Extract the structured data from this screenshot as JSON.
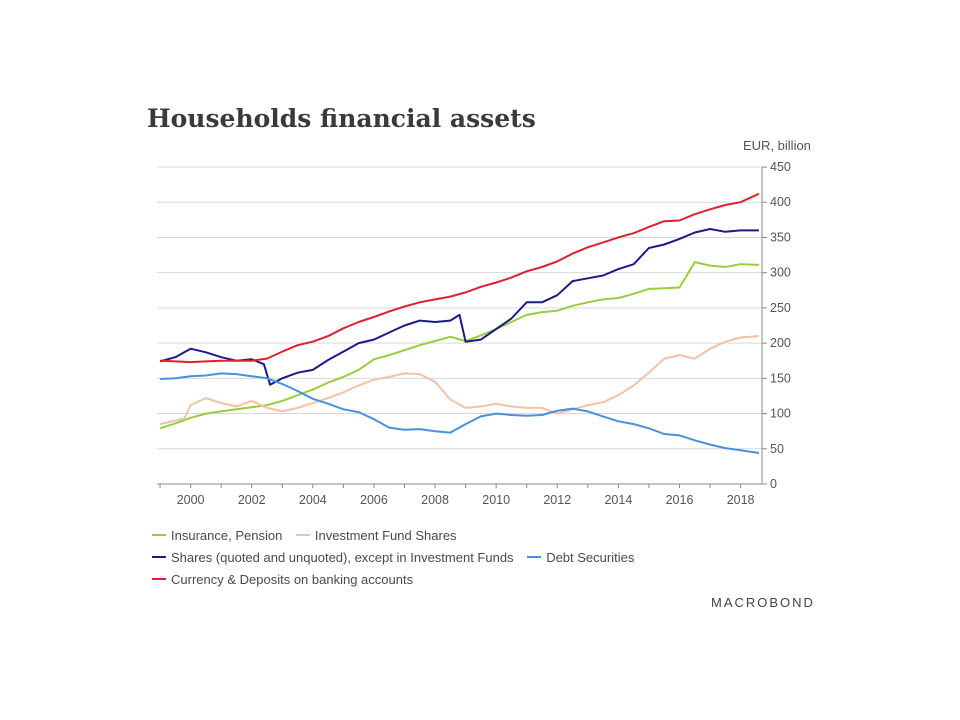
{
  "chart_data": {
    "type": "line",
    "title": "Households financial assets",
    "unit_label": "EUR, billion",
    "xlabel": "",
    "ylabel": "",
    "ylim": [
      0,
      450
    ],
    "yticks": [
      0,
      50,
      100,
      150,
      200,
      250,
      300,
      350,
      400,
      450
    ],
    "xlim": [
      1998.9,
      2018.7
    ],
    "xticks": [
      2000,
      2002,
      2004,
      2006,
      2008,
      2010,
      2012,
      2014,
      2016,
      2018
    ],
    "grid": true,
    "legend_position": "bottom",
    "source": "MACROBOND",
    "series": [
      {
        "name": "Insurance, Pension",
        "color": "#9acd3c",
        "x": [
          1999.0,
          1999.5,
          2000.0,
          2000.5,
          2001.0,
          2001.5,
          2002.0,
          2002.5,
          2003.0,
          2003.5,
          2004.0,
          2004.5,
          2005.0,
          2005.5,
          2006.0,
          2006.5,
          2007.0,
          2007.5,
          2008.0,
          2008.5,
          2009.0,
          2009.5,
          2010.0,
          2010.5,
          2011.0,
          2011.5,
          2012.0,
          2012.5,
          2013.0,
          2013.5,
          2014.0,
          2014.5,
          2015.0,
          2015.5,
          2016.0,
          2016.5,
          2017.0,
          2017.5,
          2018.0,
          2018.6
        ],
        "values": [
          79,
          86,
          94,
          100,
          103,
          106,
          109,
          112,
          118,
          126,
          134,
          144,
          152,
          162,
          177,
          183,
          190,
          197,
          203,
          209,
          203,
          211,
          220,
          230,
          240,
          244,
          246,
          253,
          258,
          262,
          264,
          270,
          277,
          278,
          279,
          315,
          310,
          308,
          312,
          311
        ]
      },
      {
        "name": "Investment Fund Shares",
        "color": "#f5c1a4",
        "x": [
          1999.0,
          1999.5,
          1999.8,
          2000.0,
          2000.5,
          2001.0,
          2001.5,
          2002.0,
          2002.5,
          2003.0,
          2003.5,
          2004.0,
          2004.5,
          2005.0,
          2005.5,
          2006.0,
          2006.5,
          2007.0,
          2007.5,
          2008.0,
          2008.5,
          2009.0,
          2009.5,
          2010.0,
          2010.5,
          2011.0,
          2011.5,
          2012.0,
          2012.5,
          2013.0,
          2013.5,
          2014.0,
          2014.5,
          2015.0,
          2015.5,
          2016.0,
          2016.5,
          2017.0,
          2017.5,
          2018.0,
          2018.6
        ],
        "values": [
          85,
          90,
          93,
          112,
          122,
          115,
          110,
          118,
          108,
          103,
          108,
          115,
          122,
          130,
          140,
          148,
          152,
          157,
          156,
          145,
          120,
          108,
          110,
          114,
          110,
          108,
          108,
          100,
          106,
          112,
          116,
          126,
          140,
          158,
          178,
          183,
          178,
          192,
          202,
          208,
          210
        ]
      },
      {
        "name": "Shares (quoted and unquoted), except in Investment Funds",
        "color": "#1a1a8c",
        "x": [
          1999.0,
          1999.5,
          2000.0,
          2000.5,
          2001.0,
          2001.5,
          2002.0,
          2002.4,
          2002.6,
          2003.0,
          2003.5,
          2004.0,
          2004.5,
          2005.0,
          2005.5,
          2006.0,
          2006.5,
          2007.0,
          2007.5,
          2008.0,
          2008.5,
          2008.8,
          2009.0,
          2009.5,
          2010.0,
          2010.5,
          2011.0,
          2011.5,
          2012.0,
          2012.5,
          2013.0,
          2013.5,
          2014.0,
          2014.5,
          2015.0,
          2015.5,
          2016.0,
          2016.5,
          2017.0,
          2017.5,
          2018.0,
          2018.6
        ],
        "values": [
          174,
          180,
          192,
          187,
          180,
          175,
          177,
          170,
          141,
          150,
          158,
          162,
          176,
          188,
          200,
          205,
          215,
          225,
          232,
          230,
          232,
          240,
          202,
          205,
          220,
          235,
          258,
          258,
          268,
          288,
          292,
          296,
          305,
          312,
          335,
          340,
          348,
          357,
          362,
          358,
          360,
          360
        ]
      },
      {
        "name": "Debt Securities",
        "color": "#4a8fe0",
        "x": [
          1999.0,
          1999.5,
          2000.0,
          2000.5,
          2001.0,
          2001.5,
          2002.0,
          2002.5,
          2003.0,
          2003.5,
          2004.0,
          2004.5,
          2005.0,
          2005.5,
          2006.0,
          2006.5,
          2007.0,
          2007.5,
          2008.0,
          2008.5,
          2009.0,
          2009.5,
          2010.0,
          2010.5,
          2011.0,
          2011.5,
          2012.0,
          2012.5,
          2013.0,
          2013.5,
          2014.0,
          2014.5,
          2015.0,
          2015.5,
          2016.0,
          2016.5,
          2017.0,
          2017.5,
          2018.0,
          2018.6
        ],
        "values": [
          149,
          150,
          153,
          154,
          157,
          156,
          153,
          150,
          142,
          132,
          121,
          114,
          106,
          102,
          92,
          80,
          77,
          78,
          75,
          73,
          85,
          96,
          100,
          98,
          97,
          98,
          104,
          107,
          103,
          96,
          89,
          85,
          79,
          71,
          69,
          62,
          56,
          51,
          48,
          44
        ]
      },
      {
        "name": "Currency & Deposits on banking accounts",
        "color": "#e0202c",
        "x": [
          1999.0,
          1999.5,
          2000.0,
          2000.5,
          2001.0,
          2001.5,
          2002.0,
          2002.5,
          2003.0,
          2003.5,
          2004.0,
          2004.5,
          2005.0,
          2005.5,
          2006.0,
          2006.5,
          2007.0,
          2007.5,
          2008.0,
          2008.5,
          2009.0,
          2009.5,
          2010.0,
          2010.5,
          2011.0,
          2011.5,
          2012.0,
          2012.5,
          2013.0,
          2013.5,
          2014.0,
          2014.5,
          2015.0,
          2015.5,
          2016.0,
          2016.5,
          2017.0,
          2017.5,
          2018.0,
          2018.6
        ],
        "values": [
          175,
          174,
          173,
          174,
          175,
          175,
          175,
          178,
          188,
          197,
          202,
          210,
          221,
          230,
          237,
          245,
          252,
          258,
          262,
          266,
          272,
          280,
          286,
          293,
          302,
          308,
          316,
          327,
          336,
          343,
          350,
          356,
          365,
          373,
          374,
          383,
          390,
          396,
          400,
          412
        ]
      }
    ]
  },
  "legend": {
    "row1": [
      "Insurance, Pension",
      "Investment Fund Shares"
    ],
    "row2": [
      "Shares (quoted and unquoted), except in Investment Funds",
      "Debt Securities"
    ],
    "row3": [
      "Currency & Deposits on banking accounts"
    ]
  }
}
